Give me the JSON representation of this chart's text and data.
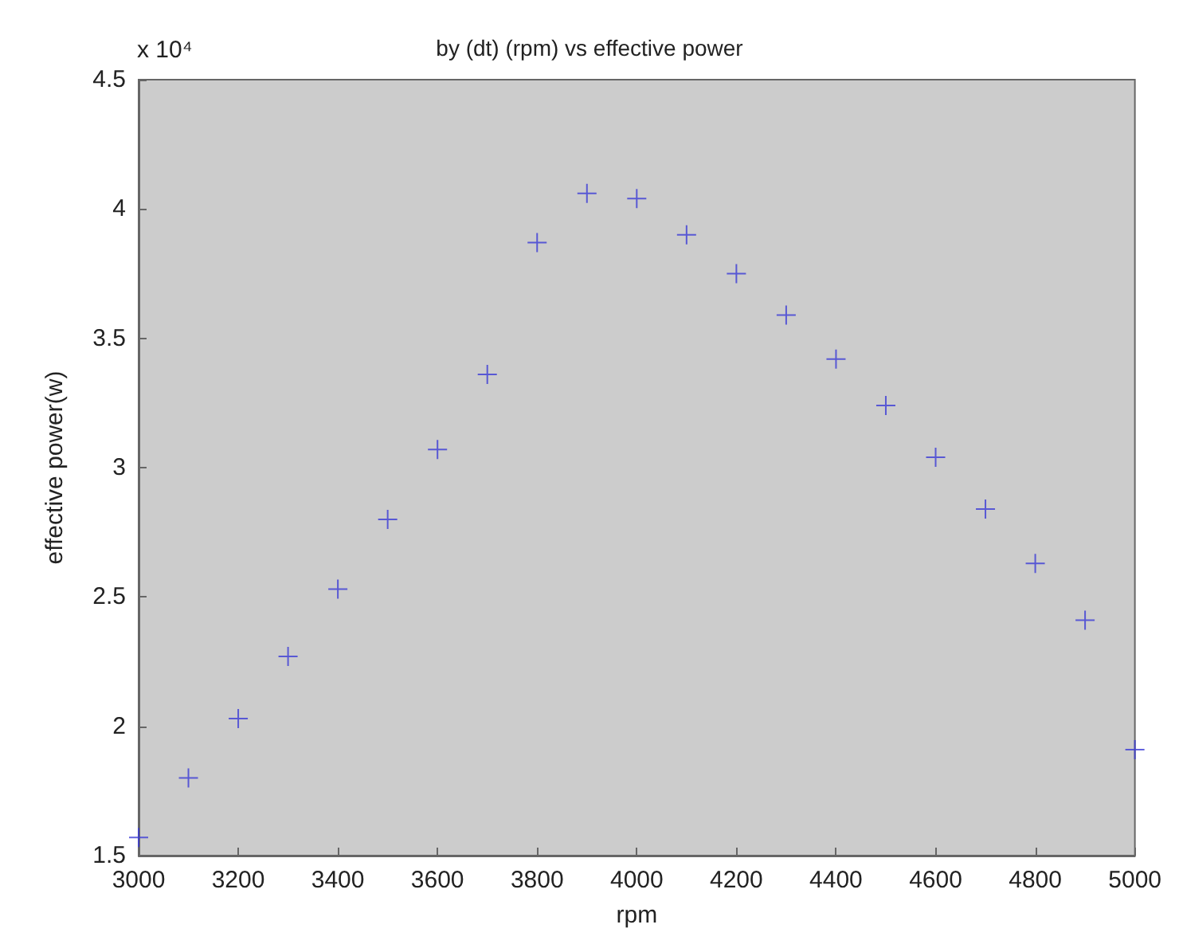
{
  "chart_data": {
    "type": "scatter",
    "title": "by (dt) (rpm) vs effective power",
    "xlabel": "rpm",
    "ylabel": "effective power(w)",
    "annotations": [
      "x 10⁴"
    ],
    "x": [
      3000,
      3100,
      3200,
      3300,
      3400,
      3500,
      3600,
      3700,
      3800,
      3900,
      4000,
      4100,
      4200,
      4300,
      4400,
      4500,
      4600,
      4700,
      4800,
      4900,
      5000
    ],
    "series": [
      {
        "color": "#3b3bd6",
        "values": [
          1.57,
          1.8,
          2.03,
          2.27,
          2.53,
          2.8,
          3.07,
          3.36,
          3.87,
          4.06,
          4.04,
          3.9,
          3.75,
          3.59,
          3.42,
          3.24,
          3.04,
          2.84,
          2.63,
          2.41,
          1.91
        ]
      }
    ],
    "xlim": [
      3000,
      5000
    ],
    "xticks": [
      3000,
      3200,
      3400,
      3600,
      3800,
      4000,
      4200,
      4400,
      4600,
      4800,
      5000
    ],
    "ylim": [
      1.5,
      4.5
    ],
    "yticks": [
      1.5,
      2,
      2.5,
      3,
      3.5,
      4,
      4.5
    ],
    "marker": "cross",
    "grid": false
  }
}
